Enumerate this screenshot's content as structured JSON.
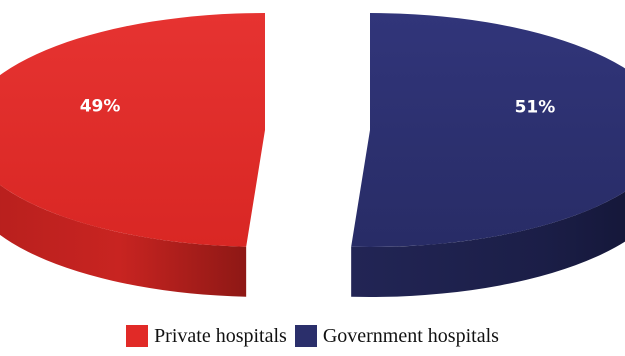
{
  "chart_data": {
    "type": "pie",
    "title": "",
    "style": "3d-exploded",
    "categories": [
      "Private hospitals",
      "Government hospitals"
    ],
    "values": [
      49,
      51
    ],
    "data_labels": [
      "49%",
      "51%"
    ],
    "colors": [
      "#e12a27",
      "#2b2f6b"
    ],
    "legend_position": "bottom"
  }
}
